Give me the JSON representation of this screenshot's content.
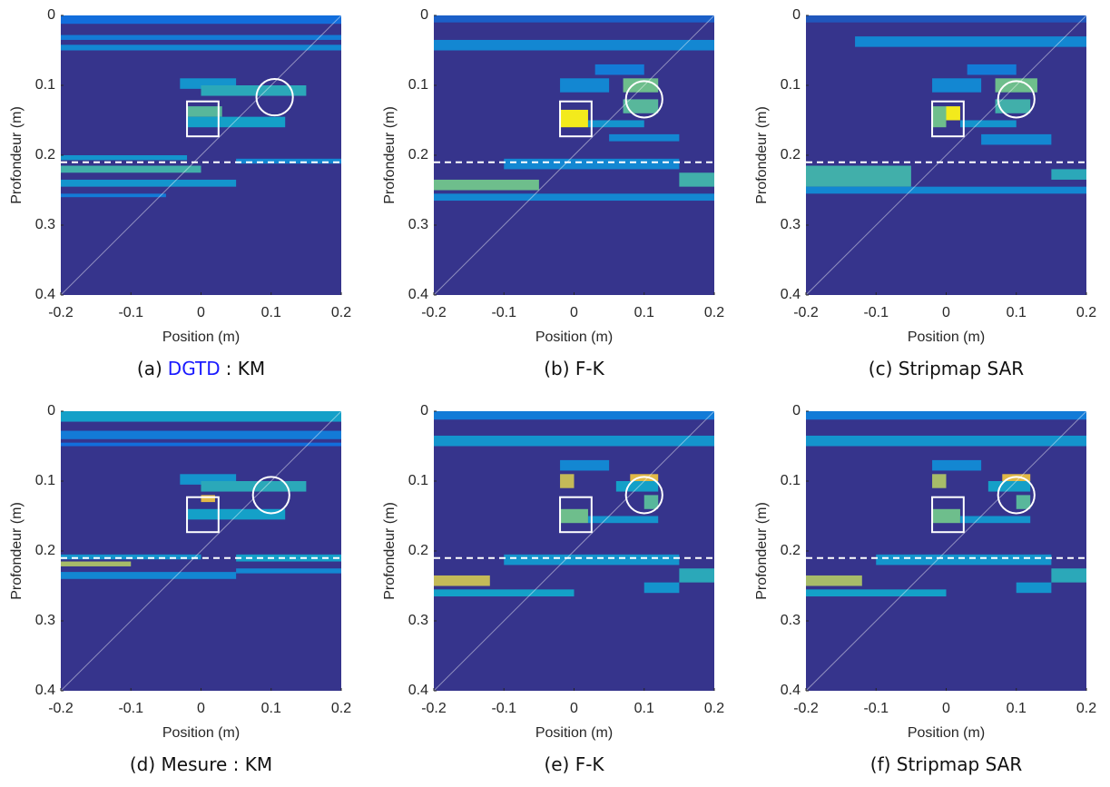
{
  "chart_data": [
    {
      "type": "heatmap",
      "caption": "(a)",
      "caption_method": "DGTD",
      "caption_method_color": "#1a1aff",
      "caption_suffix": ": KM",
      "xlabel": "Position (m)",
      "ylabel": "Profondeur (m)",
      "xlim": [
        -0.2,
        0.2
      ],
      "ylim": [
        0,
        0.4
      ],
      "xticks": [
        -0.2,
        -0.1,
        0,
        0.1,
        0.2
      ],
      "yticks": [
        0,
        0.1,
        0.2,
        0.3,
        0.4
      ],
      "cells": [
        [
          -0.2,
          0.2,
          0.0,
          0.012,
          0.2
        ],
        [
          -0.2,
          0.2,
          0.028,
          0.035,
          0.25
        ],
        [
          -0.2,
          0.2,
          0.042,
          0.05,
          0.3
        ],
        [
          -0.03,
          0.05,
          0.09,
          0.105,
          0.35
        ],
        [
          0.0,
          0.15,
          0.1,
          0.115,
          0.45
        ],
        [
          -0.02,
          0.03,
          0.13,
          0.145,
          0.55
        ],
        [
          -0.02,
          0.12,
          0.145,
          0.16,
          0.4
        ],
        [
          -0.2,
          -0.02,
          0.2,
          0.207,
          0.35
        ],
        [
          -0.2,
          0.0,
          0.215,
          0.225,
          0.5
        ],
        [
          -0.2,
          0.05,
          0.235,
          0.245,
          0.35
        ],
        [
          -0.2,
          -0.05,
          0.255,
          0.26,
          0.25
        ],
        [
          0.05,
          0.2,
          0.205,
          0.212,
          0.3
        ]
      ],
      "box": [
        -0.02,
        0.025,
        0.123,
        0.173
      ],
      "circle": [
        0.105,
        0.117,
        0.026
      ],
      "dashed_y": 0.21
    },
    {
      "type": "heatmap",
      "caption": "(b) F-K",
      "xlabel": "Position (m)",
      "ylabel": "Profondeur (m)",
      "xlim": [
        -0.2,
        0.2
      ],
      "ylim": [
        0,
        0.4
      ],
      "xticks": [
        -0.2,
        -0.1,
        0,
        0.1,
        0.2
      ],
      "yticks": [
        0,
        0.1,
        0.2,
        0.3,
        0.4
      ],
      "cells": [
        [
          -0.2,
          0.2,
          0.0,
          0.01,
          0.15
        ],
        [
          -0.2,
          0.2,
          0.035,
          0.05,
          0.3
        ],
        [
          0.03,
          0.1,
          0.07,
          0.085,
          0.25
        ],
        [
          -0.02,
          0.05,
          0.09,
          0.11,
          0.3
        ],
        [
          0.07,
          0.12,
          0.09,
          0.11,
          0.6
        ],
        [
          0.07,
          0.12,
          0.12,
          0.14,
          0.55
        ],
        [
          -0.02,
          0.02,
          0.135,
          0.16,
          0.95
        ],
        [
          0.02,
          0.1,
          0.15,
          0.16,
          0.35
        ],
        [
          0.05,
          0.15,
          0.17,
          0.18,
          0.3
        ],
        [
          -0.1,
          0.15,
          0.205,
          0.22,
          0.3
        ],
        [
          -0.2,
          -0.05,
          0.235,
          0.25,
          0.6
        ],
        [
          -0.2,
          0.2,
          0.255,
          0.265,
          0.3
        ],
        [
          0.15,
          0.2,
          0.225,
          0.245,
          0.5
        ]
      ],
      "box": [
        -0.02,
        0.025,
        0.123,
        0.173
      ],
      "circle": [
        0.1,
        0.12,
        0.026
      ],
      "dashed_y": 0.21
    },
    {
      "type": "heatmap",
      "caption": "(c) Stripmap SAR",
      "xlabel": "Position (m)",
      "ylabel": "Profondeur (m)",
      "xlim": [
        -0.2,
        0.2
      ],
      "ylim": [
        0,
        0.4
      ],
      "xticks": [
        -0.2,
        -0.1,
        0,
        0.1,
        0.2
      ],
      "yticks": [
        0,
        0.1,
        0.2,
        0.3,
        0.4
      ],
      "cells": [
        [
          -0.2,
          0.2,
          0.0,
          0.01,
          0.12
        ],
        [
          -0.13,
          0.2,
          0.03,
          0.045,
          0.3
        ],
        [
          0.03,
          0.1,
          0.07,
          0.085,
          0.25
        ],
        [
          -0.02,
          0.05,
          0.09,
          0.11,
          0.3
        ],
        [
          0.07,
          0.13,
          0.09,
          0.11,
          0.6
        ],
        [
          0.07,
          0.12,
          0.12,
          0.14,
          0.5
        ],
        [
          0.0,
          0.02,
          0.13,
          0.15,
          0.95
        ],
        [
          -0.02,
          0.0,
          0.13,
          0.16,
          0.6
        ],
        [
          0.02,
          0.1,
          0.15,
          0.16,
          0.35
        ],
        [
          0.05,
          0.15,
          0.17,
          0.185,
          0.3
        ],
        [
          -0.2,
          -0.05,
          0.215,
          0.245,
          0.5
        ],
        [
          -0.2,
          0.2,
          0.245,
          0.255,
          0.3
        ],
        [
          0.15,
          0.2,
          0.22,
          0.235,
          0.45
        ]
      ],
      "box": [
        -0.02,
        0.025,
        0.123,
        0.173
      ],
      "circle": [
        0.1,
        0.12,
        0.026
      ],
      "dashed_y": 0.21
    },
    {
      "type": "heatmap",
      "caption": "(d) Mesure : KM",
      "xlabel": "Position (m)",
      "ylabel": "Profondeur (m)",
      "xlim": [
        -0.2,
        0.2
      ],
      "ylim": [
        0,
        0.4
      ],
      "xticks": [
        -0.2,
        -0.1,
        0,
        0.1,
        0.2
      ],
      "yticks": [
        0,
        0.1,
        0.2,
        0.3,
        0.4
      ],
      "cells": [
        [
          -0.2,
          0.2,
          0.0,
          0.015,
          0.4
        ],
        [
          -0.2,
          0.2,
          0.028,
          0.04,
          0.25
        ],
        [
          -0.2,
          0.2,
          0.045,
          0.05,
          0.2
        ],
        [
          -0.03,
          0.05,
          0.09,
          0.105,
          0.35
        ],
        [
          0.0,
          0.15,
          0.1,
          0.115,
          0.45
        ],
        [
          0.0,
          0.02,
          0.12,
          0.13,
          0.8
        ],
        [
          -0.02,
          0.12,
          0.14,
          0.155,
          0.4
        ],
        [
          -0.2,
          -0.1,
          0.215,
          0.222,
          0.7
        ],
        [
          -0.2,
          0.0,
          0.205,
          0.212,
          0.35
        ],
        [
          -0.2,
          0.05,
          0.23,
          0.24,
          0.3
        ],
        [
          0.05,
          0.2,
          0.205,
          0.215,
          0.4
        ],
        [
          0.05,
          0.2,
          0.225,
          0.232,
          0.3
        ]
      ],
      "box": [
        -0.02,
        0.025,
        0.123,
        0.173
      ],
      "circle": [
        0.1,
        0.12,
        0.026
      ],
      "dashed_y": 0.21
    },
    {
      "type": "heatmap",
      "caption": "(e) F-K",
      "xlabel": "Position (m)",
      "ylabel": "Profondeur (m)",
      "xlim": [
        -0.2,
        0.2
      ],
      "ylim": [
        0,
        0.4
      ],
      "xticks": [
        -0.2,
        -0.1,
        0,
        0.1,
        0.2
      ],
      "yticks": [
        0,
        0.1,
        0.2,
        0.3,
        0.4
      ],
      "cells": [
        [
          -0.2,
          0.2,
          0.0,
          0.012,
          0.25
        ],
        [
          -0.2,
          0.2,
          0.035,
          0.05,
          0.35
        ],
        [
          -0.02,
          0.05,
          0.07,
          0.085,
          0.3
        ],
        [
          -0.02,
          0.0,
          0.09,
          0.11,
          0.75
        ],
        [
          0.08,
          0.12,
          0.09,
          0.1,
          0.8
        ],
        [
          0.06,
          0.12,
          0.1,
          0.115,
          0.4
        ],
        [
          0.1,
          0.12,
          0.12,
          0.14,
          0.55
        ],
        [
          -0.02,
          0.02,
          0.14,
          0.16,
          0.6
        ],
        [
          0.02,
          0.12,
          0.15,
          0.16,
          0.35
        ],
        [
          -0.1,
          0.15,
          0.205,
          0.22,
          0.35
        ],
        [
          -0.2,
          -0.12,
          0.235,
          0.25,
          0.75
        ],
        [
          -0.2,
          0.0,
          0.255,
          0.265,
          0.4
        ],
        [
          0.15,
          0.2,
          0.225,
          0.245,
          0.45
        ],
        [
          0.1,
          0.15,
          0.245,
          0.26,
          0.35
        ]
      ],
      "box": [
        -0.02,
        0.025,
        0.123,
        0.173
      ],
      "circle": [
        0.1,
        0.12,
        0.026
      ],
      "dashed_y": 0.21
    },
    {
      "type": "heatmap",
      "caption": "(f) Stripmap SAR",
      "xlabel": "Position (m)",
      "ylabel": "Profondeur (m)",
      "xlim": [
        -0.2,
        0.2
      ],
      "ylim": [
        0,
        0.4
      ],
      "xticks": [
        -0.2,
        -0.1,
        0,
        0.1,
        0.2
      ],
      "yticks": [
        0,
        0.1,
        0.2,
        0.3,
        0.4
      ],
      "cells": [
        [
          -0.2,
          0.2,
          0.0,
          0.012,
          0.25
        ],
        [
          -0.2,
          0.2,
          0.035,
          0.05,
          0.35
        ],
        [
          -0.02,
          0.05,
          0.07,
          0.085,
          0.3
        ],
        [
          -0.02,
          0.0,
          0.09,
          0.11,
          0.7
        ],
        [
          0.08,
          0.12,
          0.09,
          0.1,
          0.8
        ],
        [
          0.06,
          0.12,
          0.1,
          0.115,
          0.4
        ],
        [
          0.1,
          0.12,
          0.12,
          0.14,
          0.55
        ],
        [
          -0.02,
          0.02,
          0.14,
          0.16,
          0.6
        ],
        [
          0.02,
          0.12,
          0.15,
          0.16,
          0.35
        ],
        [
          -0.1,
          0.15,
          0.205,
          0.22,
          0.35
        ],
        [
          -0.2,
          -0.12,
          0.235,
          0.25,
          0.7
        ],
        [
          -0.2,
          0.0,
          0.255,
          0.265,
          0.4
        ],
        [
          0.15,
          0.2,
          0.225,
          0.245,
          0.45
        ],
        [
          0.1,
          0.15,
          0.245,
          0.26,
          0.35
        ]
      ],
      "box": [
        -0.02,
        0.025,
        0.123,
        0.173
      ],
      "circle": [
        0.1,
        0.12,
        0.026
      ],
      "dashed_y": 0.21
    }
  ]
}
